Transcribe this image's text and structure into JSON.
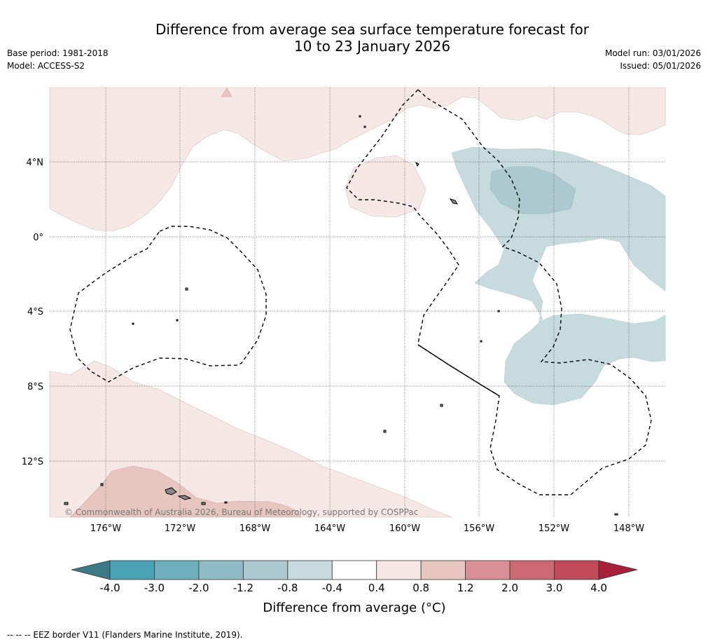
{
  "title": {
    "line1": "Difference from average sea surface temperature forecast for",
    "line2": "10 to 23 January 2026"
  },
  "meta": {
    "base_period": "Base period: 1981-2018",
    "model": "Model: ACCESS-S2",
    "model_run": "Model run: 03/01/2026",
    "issued": "Issued: 05/01/2026"
  },
  "map": {
    "lat_labels": [
      "4°N",
      "0°",
      "4°S",
      "8°S",
      "12°S"
    ],
    "lon_labels": [
      "176°W",
      "172°W",
      "168°W",
      "164°W",
      "160°W",
      "156°W",
      "152°W",
      "148°W"
    ],
    "copyright": "© Commonwealth of Australia 2026, Bureau of Meteorology, supported by COSPPac"
  },
  "colorbar": {
    "ticks": [
      "-4.0",
      "-3.0",
      "-2.0",
      "-1.2",
      "-0.8",
      "-0.4",
      "0.4",
      "0.8",
      "1.2",
      "2.0",
      "3.0",
      "4.0"
    ],
    "colors": [
      "#4aa3b4",
      "#6eafbd",
      "#8fbbc6",
      "#abc9cf",
      "#c7dadd",
      "#ffffff",
      "#f5e8e6",
      "#e8c6c0",
      "#d88f95",
      "#cc6a74",
      "#c14a58"
    ],
    "low_extend_color": "#3b7a85",
    "high_extend_color": "#a8203a",
    "label": "Difference from average (°C)"
  },
  "legend": {
    "eez": "-- -- -- EEZ border V11 (Flanders Marine Institute, 2019)."
  }
}
